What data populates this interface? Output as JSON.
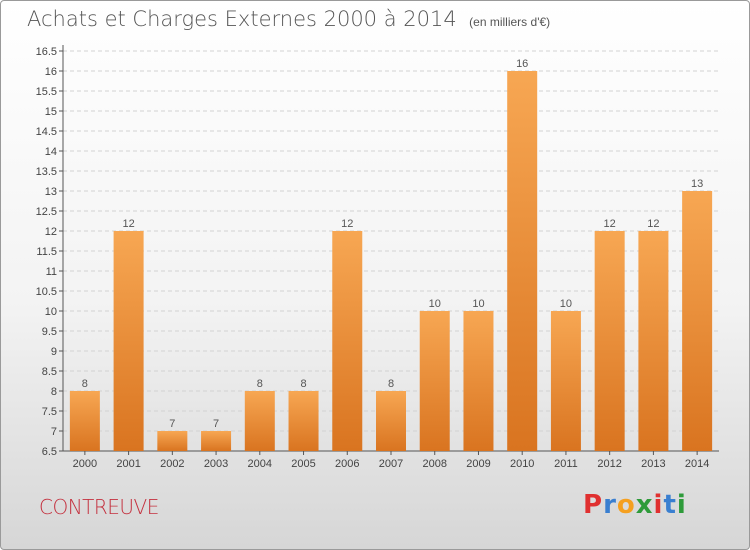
{
  "title": "Achats et Charges Externes 2000 à 2014",
  "subtitle": "(en milliers d'€)",
  "commune": "CONTREUVE",
  "brand": {
    "text": "Proxiti",
    "colors": [
      "#e03030",
      "#3a7fd0",
      "#f5a020",
      "#2e9b3a",
      "#e03030",
      "#3a7fd0",
      "#2e9b3a"
    ]
  },
  "colors": {
    "bar_light": "#f7a753",
    "bar_dark": "#d97420",
    "commune_text": "#c4303e"
  },
  "chart_data": {
    "type": "bar",
    "categories": [
      "2000",
      "2001",
      "2002",
      "2003",
      "2004",
      "2005",
      "2006",
      "2007",
      "2008",
      "2009",
      "2010",
      "2011",
      "2012",
      "2013",
      "2014"
    ],
    "values": [
      8,
      12,
      7,
      7,
      8,
      8,
      12,
      8,
      10,
      10,
      16,
      10,
      12,
      12,
      13
    ],
    "data_labels": [
      "8",
      "12",
      "7",
      "7",
      "8",
      "8",
      "12",
      "8",
      "10",
      "10",
      "16",
      "10",
      "12",
      "12",
      "13"
    ],
    "ylim": [
      6.5,
      16.5
    ],
    "yticks": [
      "6.5",
      "7",
      "7.5",
      "8",
      "8.5",
      "9",
      "9.5",
      "10",
      "10.5",
      "11",
      "11.5",
      "12",
      "12.5",
      "13",
      "13.5",
      "14",
      "14.5",
      "15",
      "15.5",
      "16",
      "16.5"
    ],
    "grid": true,
    "legend": "none"
  }
}
